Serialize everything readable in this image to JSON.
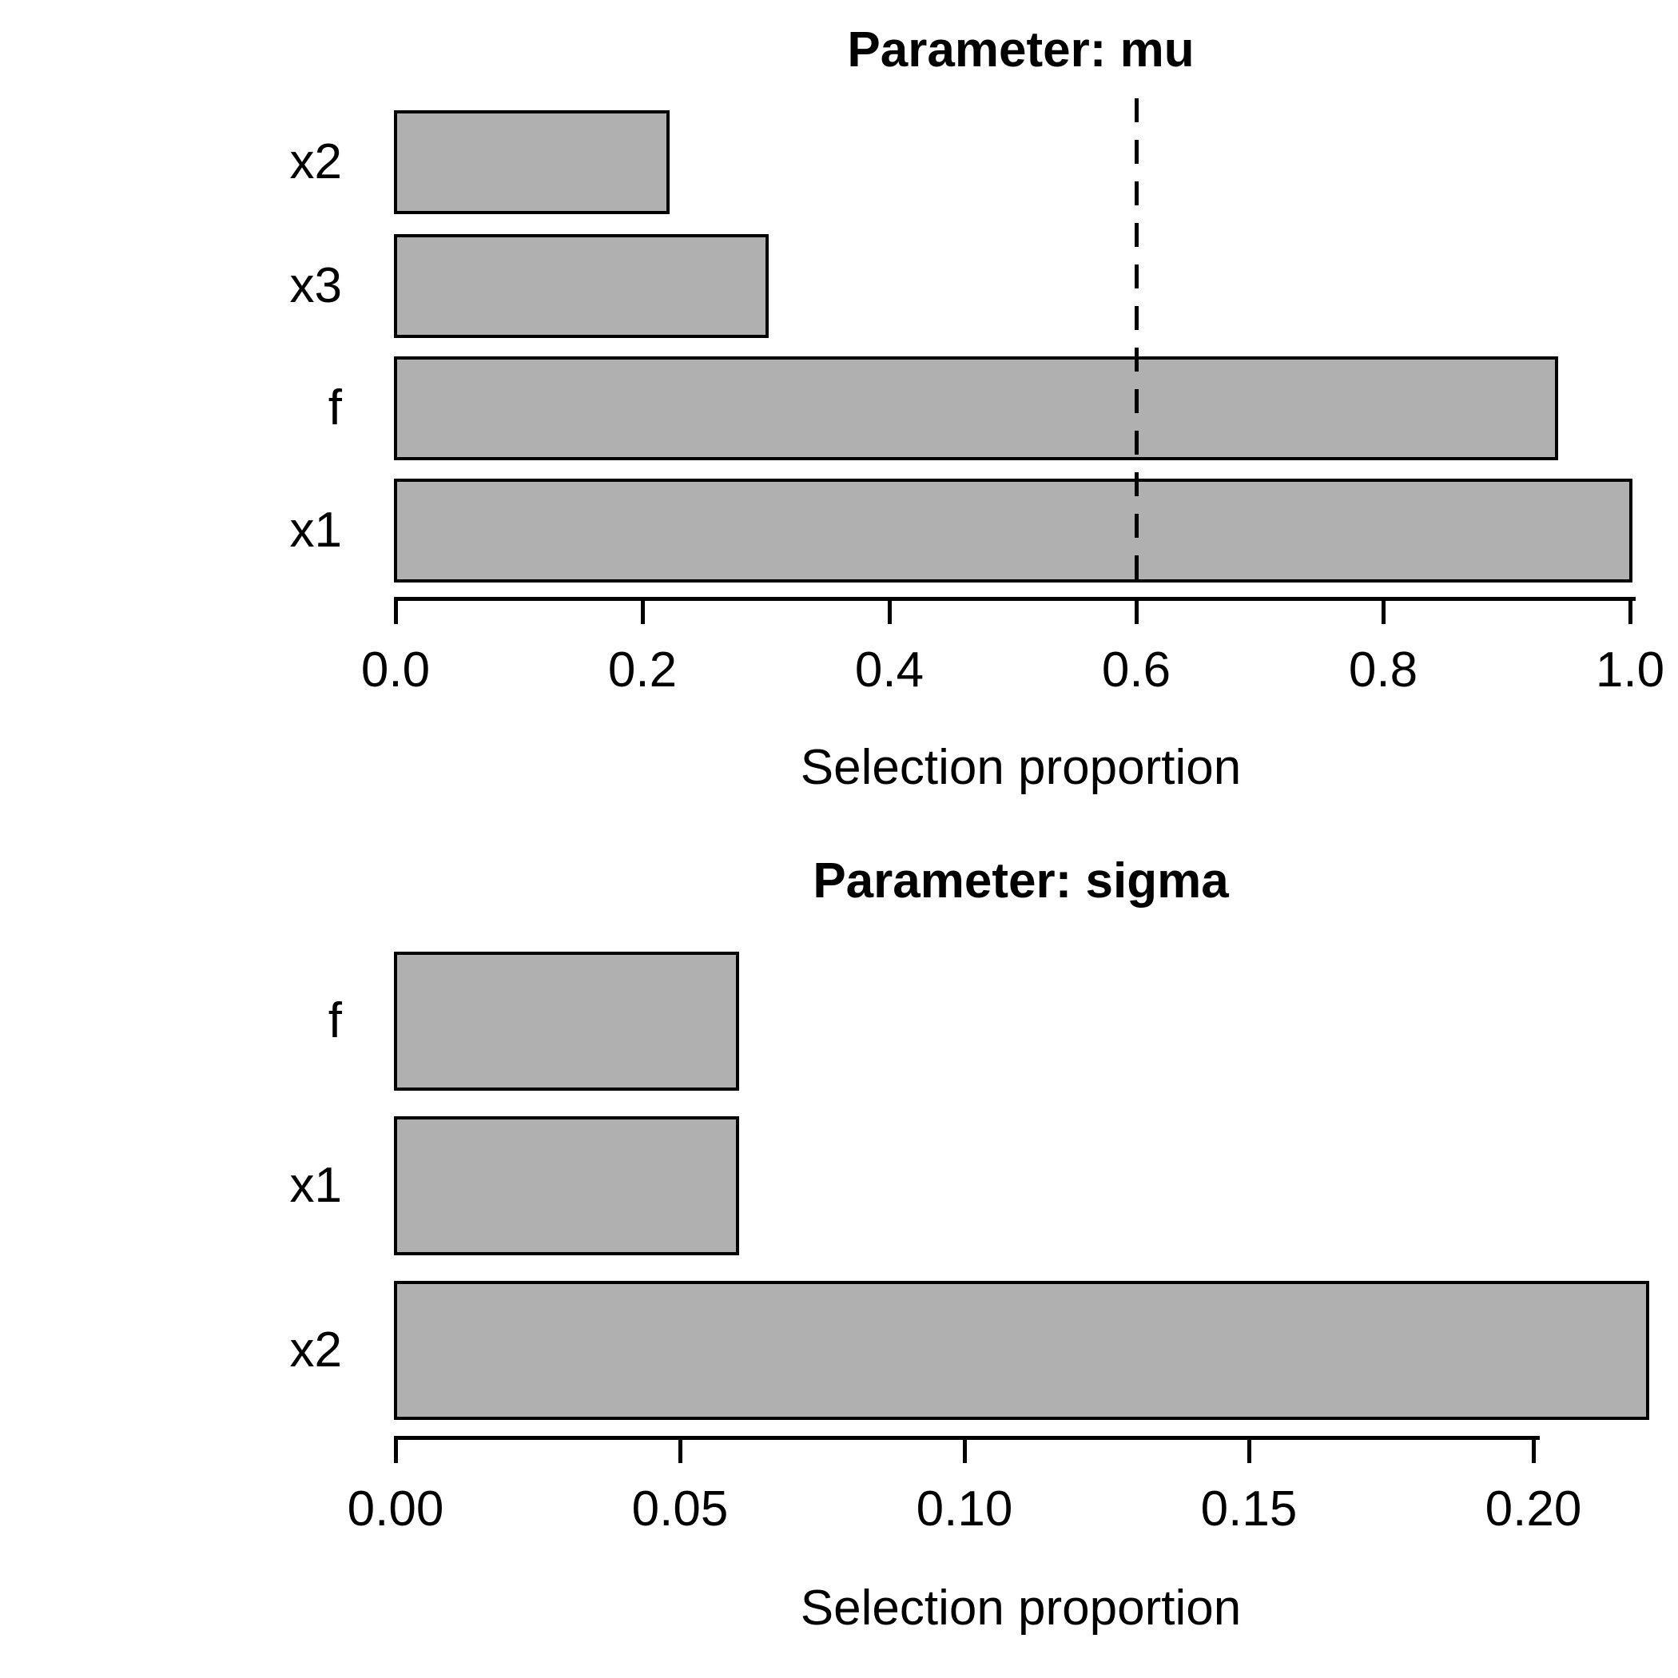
{
  "figure": {
    "background_color": "#ffffff",
    "bar_fill_color": "#b0b0b0",
    "bar_border_color": "#000000",
    "axis_color": "#000000",
    "text_color": "#000000"
  },
  "chart_data": [
    {
      "type": "bar",
      "orientation": "horizontal",
      "title": "Parameter: mu",
      "xlabel": "Selection proportion",
      "categories_top_to_bottom": [
        "x2",
        "x3",
        "f",
        "x1"
      ],
      "values": [
        0.22,
        0.3,
        0.94,
        1.0
      ],
      "xlim": [
        0.0,
        1.0
      ],
      "xticks": [
        0.0,
        0.2,
        0.4,
        0.6,
        0.8,
        1.0
      ],
      "xtick_labels": [
        "0.0",
        "0.2",
        "0.4",
        "0.6",
        "0.8",
        "1.0"
      ],
      "cutoff_line": {
        "value": 0.6,
        "style": "dashed",
        "color": "#000000"
      },
      "grid": false,
      "legend": null
    },
    {
      "type": "bar",
      "orientation": "horizontal",
      "title": "Parameter: sigma",
      "xlabel": "Selection proportion",
      "categories_top_to_bottom": [
        "f",
        "x1",
        "x2"
      ],
      "values": [
        0.06,
        0.06,
        0.22
      ],
      "xlim": [
        0.0,
        0.22
      ],
      "xticks": [
        0.0,
        0.05,
        0.1,
        0.15,
        0.2
      ],
      "xtick_labels": [
        "0.00",
        "0.05",
        "0.10",
        "0.15",
        "0.20"
      ],
      "cutoff_line": null,
      "grid": false,
      "legend": null
    }
  ]
}
